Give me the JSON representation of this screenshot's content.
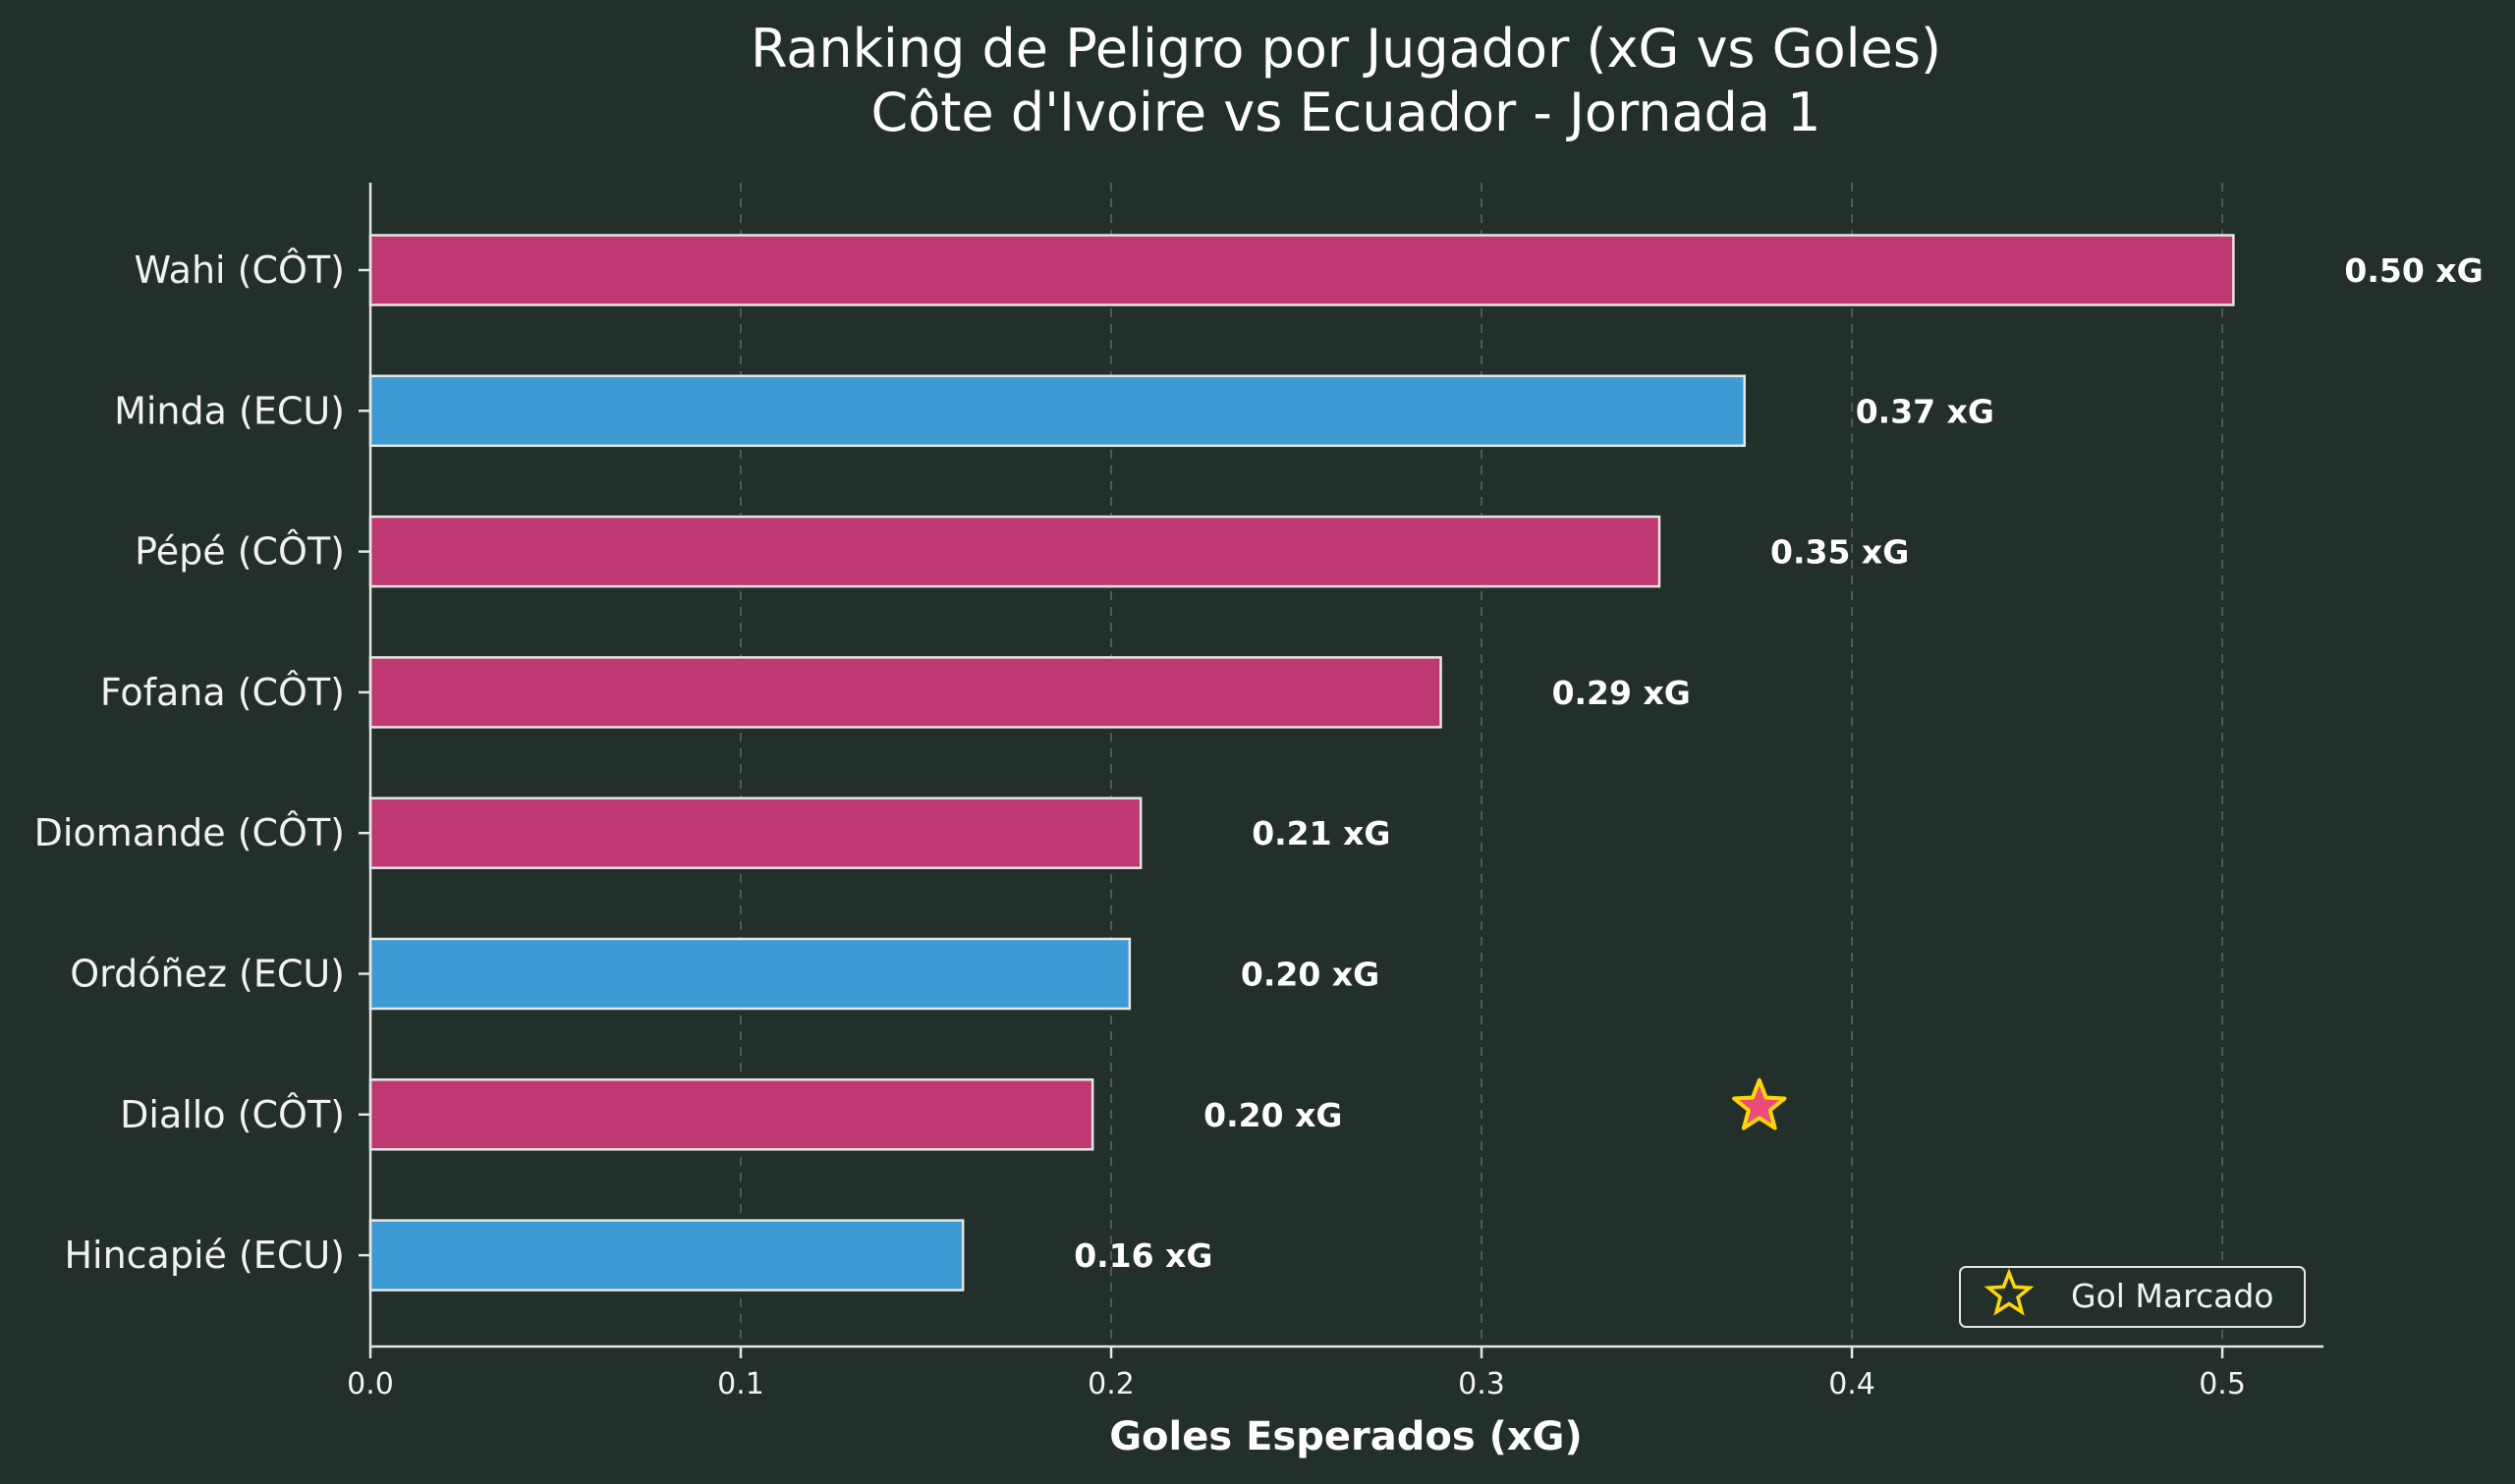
{
  "chart_data": {
    "type": "bar",
    "orientation": "horizontal",
    "title": "Ranking de Peligro por Jugador (xG vs Goles)",
    "subtitle": "Côte d'Ivoire vs Ecuador - Jornada 1",
    "xlabel": "Goles Esperados (xG)",
    "ylabel": "",
    "xlim": [
      0,
      0.5273
    ],
    "xticks": [
      "0.0",
      "0.1",
      "0.2",
      "0.3",
      "0.4",
      "0.5"
    ],
    "grid": "vertical dashed",
    "categories": [
      "Wahi (CÔT)",
      "Minda (ECU)",
      "Pépé (CÔT)",
      "Fofana (CÔT)",
      "Diomande (CÔT)",
      "Ordóñez (ECU)",
      "Diallo (CÔT)",
      "Hincapié (ECU)"
    ],
    "values": [
      0.503,
      0.371,
      0.348,
      0.289,
      0.208,
      0.205,
      0.195,
      0.16
    ],
    "labels": [
      "0.50 xG",
      "0.37 xG",
      "0.35 xG",
      "0.29 xG",
      "0.21 xG",
      "0.20 xG",
      "0.20 xG",
      "0.16 xG"
    ],
    "teams": [
      "CÔT",
      "ECU",
      "CÔT",
      "CÔT",
      "CÔT",
      "ECU",
      "CÔT",
      "ECU"
    ],
    "team_colors": {
      "CÔT": "#c03872",
      "ECU": "#3d9bd3"
    },
    "goal_markers": [
      {
        "category": "Diallo (CÔT)",
        "x": 0.375
      }
    ],
    "legend": {
      "entries": [
        "Gol Marcado"
      ],
      "placement": "bottom-right"
    },
    "colors": {
      "background": "#222f2b",
      "star_fill": "#ec4a7a",
      "star_stroke": "#ffd700",
      "bar_edge": "#e6e6e6"
    }
  }
}
